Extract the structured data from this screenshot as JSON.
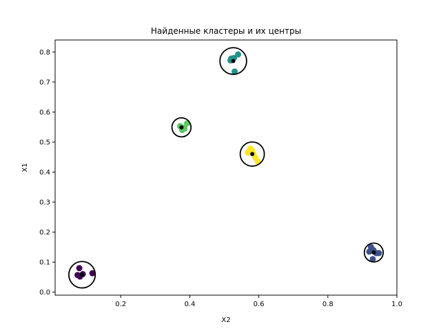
{
  "chart_data": {
    "type": "scatter",
    "title": "Найденные кластеры и их центры",
    "xlabel": "X2",
    "ylabel": "X1",
    "xlim": [
      0.01,
      1.0
    ],
    "ylim": [
      -0.01,
      0.84
    ],
    "xticks": [
      0.2,
      0.4,
      0.6,
      0.8,
      1.0
    ],
    "xtick_labels": [
      "0.2",
      "0.4",
      "0.6",
      "0.8",
      "1.0"
    ],
    "yticks": [
      0.0,
      0.1,
      0.2,
      0.3,
      0.4,
      0.5,
      0.6,
      0.7,
      0.8
    ],
    "ytick_labels": [
      "0.0",
      "0.1",
      "0.2",
      "0.3",
      "0.4",
      "0.5",
      "0.6",
      "0.7",
      "0.8"
    ],
    "grid": false,
    "clusters": [
      {
        "color": "#440154",
        "points": [
          [
            0.08,
            0.08
          ],
          [
            0.075,
            0.057
          ],
          [
            0.082,
            0.052
          ],
          [
            0.09,
            0.06
          ],
          [
            0.118,
            0.063
          ]
        ],
        "center": [
          0.088,
          0.058
        ]
      },
      {
        "color": "#3b528b",
        "points": [
          [
            0.925,
            0.15
          ],
          [
            0.932,
            0.14
          ],
          [
            0.94,
            0.13
          ],
          [
            0.948,
            0.13
          ],
          [
            0.93,
            0.11
          ],
          [
            0.92,
            0.135
          ]
        ],
        "center": [
          0.933,
          0.132
        ]
      },
      {
        "color": "#21918c",
        "points": [
          [
            0.52,
            0.778
          ],
          [
            0.524,
            0.775
          ],
          [
            0.518,
            0.772
          ],
          [
            0.54,
            0.792
          ],
          [
            0.53,
            0.735
          ],
          [
            0.528,
            0.78
          ]
        ],
        "center": [
          0.526,
          0.77
        ]
      },
      {
        "color": "#5ec962",
        "points": [
          [
            0.372,
            0.553
          ],
          [
            0.38,
            0.548
          ],
          [
            0.392,
            0.562
          ],
          [
            0.378,
            0.54
          ],
          [
            0.385,
            0.545
          ]
        ],
        "center": [
          0.376,
          0.549
        ]
      },
      {
        "color": "#fde725",
        "points": [
          [
            0.568,
            0.465
          ],
          [
            0.575,
            0.478
          ],
          [
            0.572,
            0.47
          ],
          [
            0.58,
            0.472
          ],
          [
            0.59,
            0.448
          ],
          [
            0.597,
            0.435
          ],
          [
            0.585,
            0.46
          ]
        ],
        "center": [
          0.581,
          0.46
        ]
      }
    ],
    "center_marker_color": "#000000",
    "center_ring_color": "#000000"
  }
}
